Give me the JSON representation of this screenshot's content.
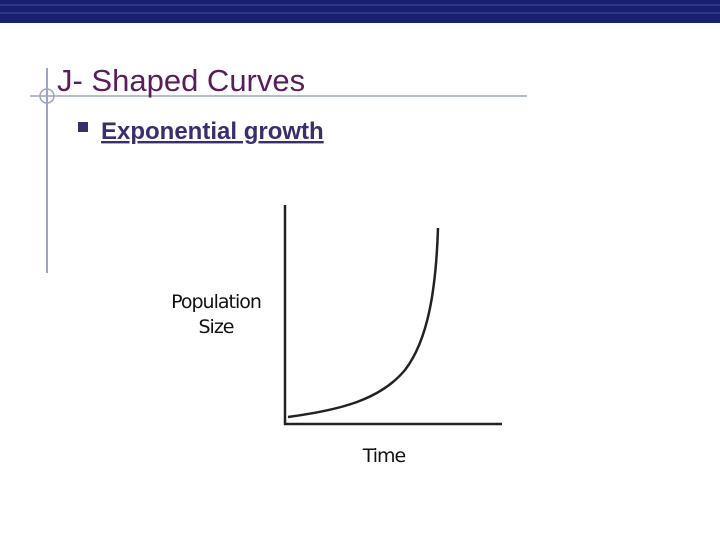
{
  "slide": {
    "title": "J- Shaped Curves",
    "bullets": [
      "Exponential growth"
    ],
    "figure": {
      "y_axis_label": [
        "Population",
        "Size"
      ],
      "x_axis_label": "Time"
    }
  }
}
